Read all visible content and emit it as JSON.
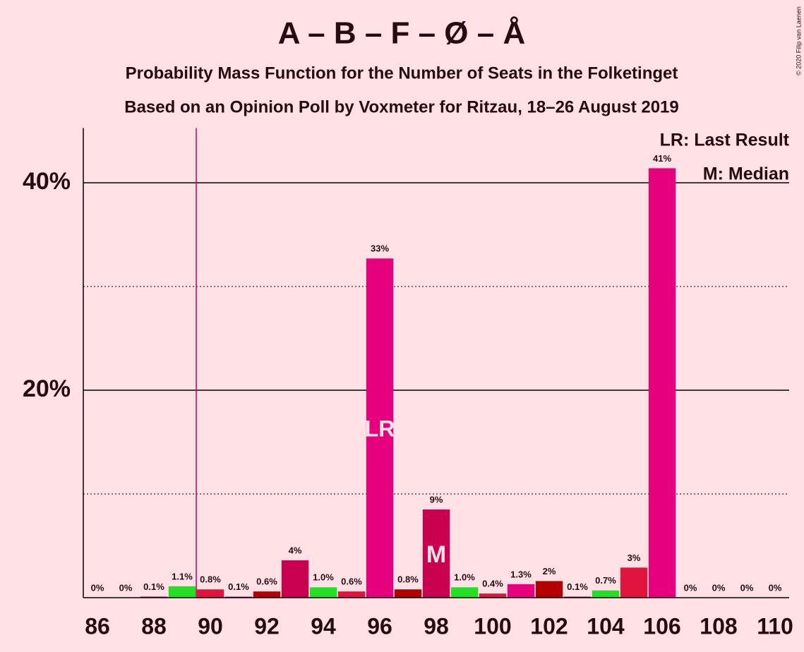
{
  "chart_data": {
    "type": "bar",
    "title": "A – B – F – Ø – Å",
    "subtitle": [
      "Probability Mass Function for the Number of Seats in the Folketinget",
      "Based on an Opinion Poll by Voxmeter for Ritzau, 18–26 August 2019"
    ],
    "credit": "© 2020 Filip van Laenen",
    "x": [
      86,
      87,
      88,
      89,
      90,
      91,
      92,
      93,
      94,
      95,
      96,
      97,
      98,
      99,
      100,
      101,
      102,
      103,
      104,
      105,
      106,
      107,
      108,
      109,
      110
    ],
    "values": [
      0,
      0,
      0.1,
      1.1,
      0.8,
      0.1,
      0.6,
      3.6,
      1.0,
      0.6,
      32.7,
      0.8,
      8.5,
      1.0,
      0.4,
      1.3,
      1.6,
      0.1,
      0.7,
      2.9,
      41.4,
      0,
      0,
      0,
      0
    ],
    "value_labels": [
      "0%",
      "0%",
      "0.1%",
      "1.1%",
      "0.8%",
      "0.1%",
      "0.6%",
      "4%",
      "1.0%",
      "0.6%",
      "33%",
      "0.8%",
      "9%",
      "1.0%",
      "0.4%",
      "1.3%",
      "2%",
      "0.1%",
      "0.7%",
      "3%",
      "41%",
      "0%",
      "0%",
      "0%",
      "0%"
    ],
    "colors": [
      "#e6007e",
      "#b30000",
      "#c8004f",
      "#22e022",
      "#e0143c",
      "#e6007e",
      "#b30000",
      "#c8004f",
      "#22e022",
      "#e0143c",
      "#e6007e",
      "#b30000",
      "#c8004f",
      "#22e022",
      "#e0143c",
      "#e6007e",
      "#b30000",
      "#c8004f",
      "#22e022",
      "#e0143c",
      "#e6007e",
      "#b30000",
      "#c8004f",
      "#22e022",
      "#e0143c"
    ],
    "xlim": [
      85.5,
      110.5
    ],
    "xticks": [
      86,
      88,
      90,
      92,
      94,
      96,
      98,
      100,
      102,
      104,
      106,
      108,
      110
    ],
    "ylim": [
      0,
      45
    ],
    "yticks": [
      {
        "value": 20,
        "label": "20%"
      },
      {
        "value": 40,
        "label": "40%"
      }
    ],
    "minor_yticks": [
      10,
      30
    ],
    "threshold_x": 89.5,
    "last_result": {
      "x": 96,
      "label": "LR"
    },
    "median": {
      "x": 98,
      "label": "M"
    },
    "legend": [
      "LR: Last Result",
      "M: Median"
    ]
  }
}
